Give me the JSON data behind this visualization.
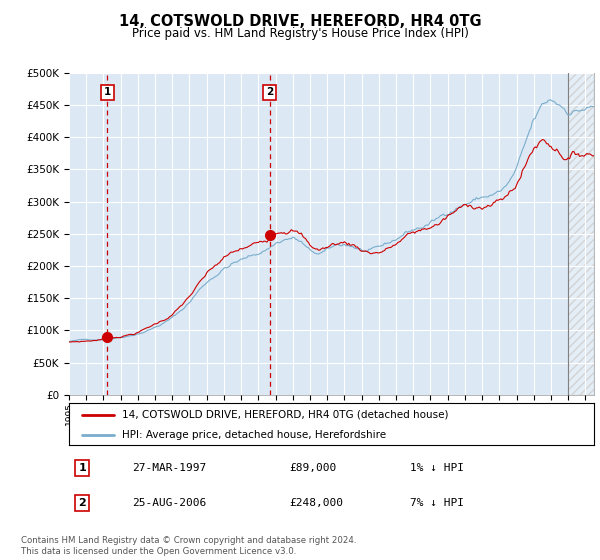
{
  "title": "14, COTSWOLD DRIVE, HEREFORD, HR4 0TG",
  "subtitle": "Price paid vs. HM Land Registry's House Price Index (HPI)",
  "plot_bg_color": "#dce9f5",
  "legend_line1": "14, COTSWOLD DRIVE, HEREFORD, HR4 0TG (detached house)",
  "legend_line2": "HPI: Average price, detached house, Herefordshire",
  "sale_color": "#cc0000",
  "hpi_color": "#7aadcc",
  "annotation_box_color": "#cc0000",
  "dashed_line_color": "#cc0000",
  "sale1_date": "27-MAR-1997",
  "sale1_price": 89000,
  "sale1_year": 1997.23,
  "sale2_date": "25-AUG-2006",
  "sale2_price": 248000,
  "sale2_year": 2006.65,
  "footer": "Contains HM Land Registry data © Crown copyright and database right 2024.\nThis data is licensed under the Open Government Licence v3.0.",
  "ylim": [
    0,
    500000
  ],
  "yticks": [
    0,
    50000,
    100000,
    150000,
    200000,
    250000,
    300000,
    350000,
    400000,
    450000,
    500000
  ],
  "xlim_start": 1995.0,
  "xlim_end": 2025.5,
  "hatch_region_start": 2024.0,
  "hatch_region_end": 2025.5
}
